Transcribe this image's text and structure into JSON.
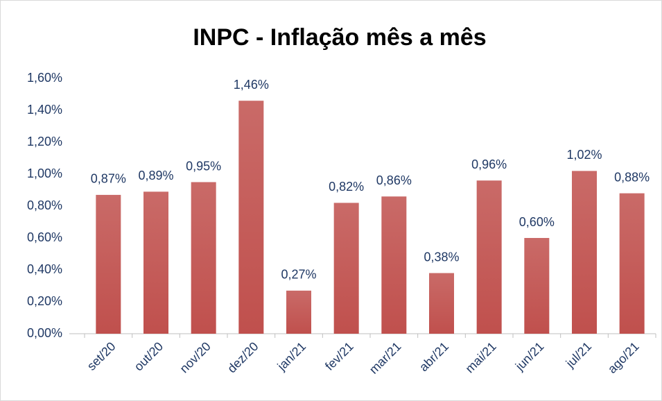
{
  "chart_data": {
    "type": "bar",
    "title": "INPC - Inflação mês a mês",
    "categories": [
      "set/20",
      "out/20",
      "nov/20",
      "dez/20",
      "jan/21",
      "fev/21",
      "mar/21",
      "abr/21",
      "mai/21",
      "jun/21",
      "jul/21",
      "ago/21"
    ],
    "values": [
      0.87,
      0.89,
      0.95,
      1.46,
      0.27,
      0.82,
      0.86,
      0.38,
      0.96,
      0.6,
      1.02,
      0.88
    ],
    "value_labels": [
      "0,87%",
      "0,89%",
      "0,95%",
      "1,46%",
      "0,27%",
      "0,82%",
      "0,86%",
      "0,38%",
      "0,96%",
      "0,60%",
      "1,02%",
      "0,88%"
    ],
    "color": "#c0504d",
    "ylim": [
      0,
      1.6
    ],
    "yticks": [
      {
        "value": 0,
        "label": "0,00%"
      },
      {
        "value": 0.2,
        "label": "0,20%"
      },
      {
        "value": 0.4,
        "label": "0,40%"
      },
      {
        "value": 0.6,
        "label": "0,60%"
      },
      {
        "value": 0.8,
        "label": "0,80%"
      },
      {
        "value": 1.0,
        "label": "1,00%"
      },
      {
        "value": 1.2,
        "label": "1,20%"
      },
      {
        "value": 1.4,
        "label": "1,40%"
      },
      {
        "value": 1.6,
        "label": "1,60%"
      }
    ],
    "grid": false
  }
}
